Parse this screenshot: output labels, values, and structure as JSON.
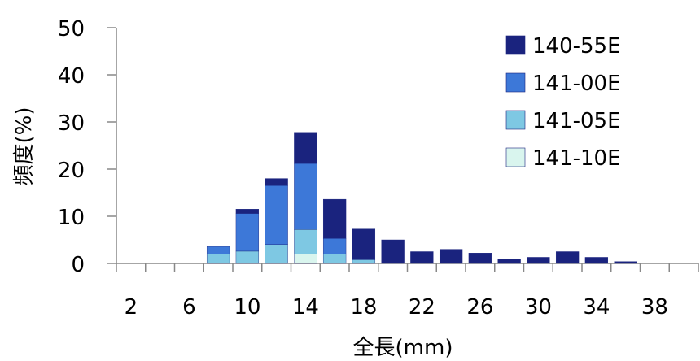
{
  "chart_data": {
    "type": "bar",
    "stacked": true,
    "title": "",
    "xlabel": "全長(mm)",
    "ylabel": "頻度(%)",
    "ylim": [
      0,
      50
    ],
    "yticks": [
      0,
      10,
      20,
      30,
      40,
      50
    ],
    "categories": [
      "2",
      "4",
      "6",
      "8",
      "10",
      "12",
      "14",
      "16",
      "18",
      "20",
      "22",
      "24",
      "26",
      "28",
      "30",
      "32",
      "34",
      "36",
      "38",
      "40"
    ],
    "xtick_labels": [
      "2",
      "6",
      "10",
      "14",
      "18",
      "22",
      "26",
      "30",
      "34",
      "38"
    ],
    "legend_position": "top-right",
    "grid": false,
    "series": [
      {
        "name": "141-10E",
        "color": "#d9f5ee",
        "values": [
          0,
          0,
          0,
          0,
          0,
          0,
          2,
          0,
          0,
          0,
          0,
          0,
          0,
          0,
          0,
          0,
          0,
          0,
          0,
          0
        ]
      },
      {
        "name": "141-05E",
        "color": "#7ec8e3",
        "values": [
          0,
          0,
          0,
          2,
          2.6,
          4,
          5.2,
          2,
          0.8,
          0,
          0,
          0,
          0,
          0,
          0,
          0,
          0,
          0,
          0,
          0
        ]
      },
      {
        "name": "141-00E",
        "color": "#3d78d8",
        "values": [
          0,
          0,
          0,
          1.6,
          8,
          12.5,
          14,
          3.3,
          0,
          0,
          0,
          0,
          0,
          0,
          0,
          0,
          0,
          0,
          0,
          0
        ]
      },
      {
        "name": "140-55E",
        "color": "#1a237e",
        "values": [
          0,
          0,
          0,
          0,
          0.9,
          1.5,
          6.6,
          8.3,
          6.5,
          5,
          2.5,
          3,
          2.2,
          1,
          1.3,
          2.5,
          1.3,
          0.4,
          0,
          0
        ]
      }
    ],
    "legend_order": [
      "140-55E",
      "141-00E",
      "141-05E",
      "141-10E"
    ]
  }
}
